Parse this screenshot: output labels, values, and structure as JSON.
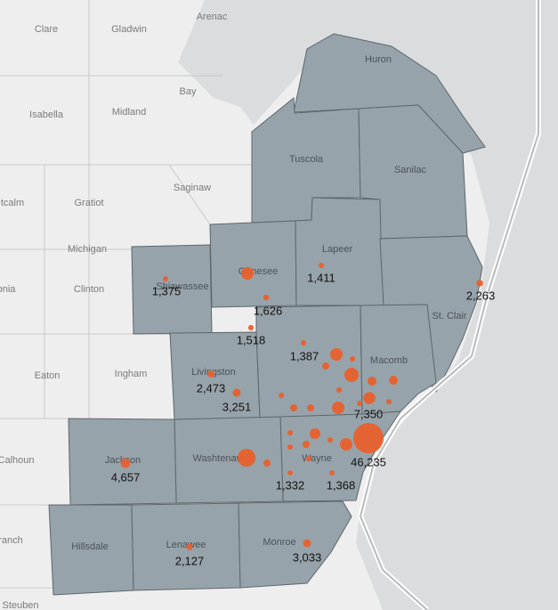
{
  "map": {
    "place_labels": [
      "Clare",
      "Gladwin",
      "Arenac",
      "Bay",
      "Isabella",
      "Midland",
      "Saginaw",
      "Huron",
      "Tuscola",
      "Sanilac",
      "tcalm",
      "Gratiot",
      "Michigan",
      "Clinton",
      "onia",
      "Shiawassee",
      "Genesee",
      "Lapeer",
      "St. Clair",
      "Macomb",
      "Eaton",
      "Ingham",
      "Livingston",
      "Washtenaw",
      "Wayne",
      "Jackson",
      "Calhoun",
      "Hillsdale",
      "Lenawee",
      "Monroe",
      "ranch",
      "Steuben"
    ],
    "bubble_color": "#e8602c",
    "bubbles": {
      "values": [
        1375,
        1626,
        1518,
        1411,
        2263,
        1387,
        2473,
        3251,
        7350,
        4657,
        46235,
        1332,
        1368,
        2127,
        3033,
        7840,
        16000,
        10240,
        7840,
        7840,
        5760,
        7840,
        4000,
        4000,
        2560,
        2560,
        2560,
        2560,
        2560,
        1440,
        1440,
        1440,
        1440,
        1440,
        1440,
        1440,
        1440,
        1440
      ],
      "value_labels": [
        "1,375",
        "1,626",
        "1,518",
        "1,411",
        "2,263",
        "1,387",
        "2,473",
        "3,251",
        "7,350",
        "4,657",
        "46,235",
        "1,332",
        "1,368",
        "2,127",
        "3,033",
        null,
        null,
        null,
        null,
        null,
        null,
        null,
        null,
        null,
        null,
        null,
        null,
        null,
        null,
        null,
        null,
        null,
        null,
        null,
        null,
        null,
        null,
        null
      ]
    }
  }
}
